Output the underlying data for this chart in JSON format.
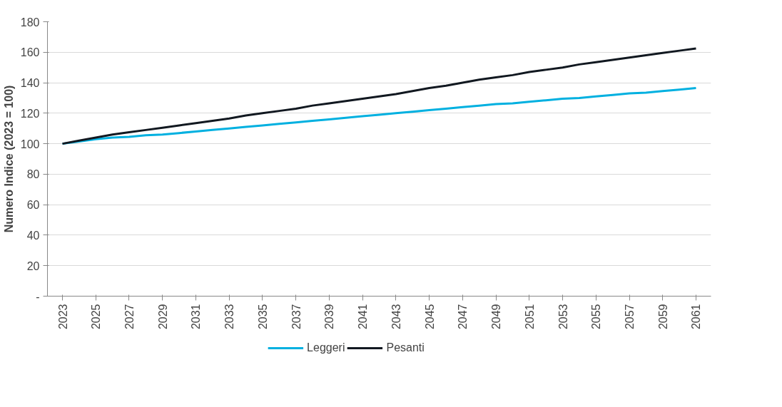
{
  "chart_data": {
    "type": "line",
    "ylabel": "Numero Indice (2023 = 100)",
    "categories": [
      "2023",
      null,
      "2025",
      null,
      "2027",
      null,
      "2029",
      null,
      "2031",
      null,
      "2033",
      null,
      "2035",
      null,
      "2037",
      null,
      "2039",
      null,
      "2041",
      null,
      "2043",
      null,
      "2045",
      null,
      "2047",
      null,
      "2049",
      null,
      "2051",
      null,
      "2053",
      null,
      "2055",
      null,
      "2057",
      null,
      "2059",
      null,
      "2061"
    ],
    "series": [
      {
        "name": "Leggeri",
        "color": "#00b0e0",
        "values": [
          100,
          101.5,
          103,
          104,
          104.5,
          105.5,
          106,
          107,
          108,
          109,
          110,
          111,
          112,
          113,
          114,
          115,
          116,
          117,
          118,
          119,
          120,
          121,
          122,
          123,
          124,
          125,
          126,
          126.5,
          127.5,
          128.5,
          129.5,
          130,
          131,
          132,
          133,
          133.5,
          134.5,
          135.5,
          136.5
        ]
      },
      {
        "name": "Pesanti",
        "color": "#111820",
        "values": [
          100,
          102,
          104,
          106,
          107.5,
          109,
          110.5,
          112,
          113.5,
          115,
          116.5,
          118.5,
          120,
          121.5,
          123,
          125,
          126.5,
          128,
          129.5,
          131,
          132.5,
          134.5,
          136.5,
          138,
          140,
          142,
          143.5,
          145,
          147,
          148.5,
          150,
          152,
          153.5,
          155,
          156.5,
          158,
          159.5,
          161,
          162.5
        ]
      }
    ],
    "ylim": [
      0,
      180
    ],
    "yticks": [
      {
        "value": 0,
        "label": "-"
      },
      20,
      40,
      60,
      80,
      100,
      120,
      140,
      160,
      180
    ],
    "grid": "y",
    "legend": "bottom",
    "marker": "none",
    "line_style": "solid"
  }
}
